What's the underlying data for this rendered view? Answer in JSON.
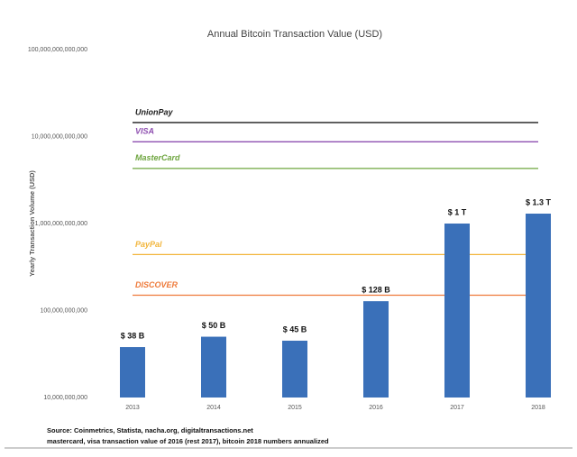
{
  "chart_data": {
    "type": "bar",
    "title": "Annual Bitcoin Transaction Value (USD)",
    "y_label": "Yearly Transaction Volume (USD)",
    "log_scale": true,
    "categories": [
      "2013",
      "2014",
      "2015",
      "2016",
      "2017",
      "2018"
    ],
    "values": [
      38000000000,
      50000000000,
      45000000000,
      128000000000,
      1000000000000,
      1300000000000
    ],
    "value_labels": [
      "$ 38 B",
      "$ 50 B",
      "$ 45 B",
      "$ 128 B",
      "$ 1 T",
      "$ 1.3 T"
    ],
    "color": "#3a70b9",
    "ylim": [
      10000000000,
      100000000000000
    ],
    "yticks": [
      {
        "value": 10000000000,
        "label": "10,000,000,000"
      },
      {
        "value": 100000000000,
        "label": "100,000,000,000"
      },
      {
        "value": 1000000000000,
        "label": "1,000,000,000,000"
      },
      {
        "value": 10000000000000,
        "label": "10,000,000,000,000"
      },
      {
        "value": 100000000000000,
        "label": "100,000,000,000,000"
      }
    ],
    "reference_lines": [
      {
        "name": "UnionPay",
        "color": "#1a1a1a",
        "value": 14500000000000
      },
      {
        "name": "VISA",
        "color": "#8e4fb0",
        "value": 8700000000000
      },
      {
        "name": "MasterCard",
        "color": "#6ea53f",
        "value": 4300000000000
      },
      {
        "name": "PayPal",
        "color": "#f2b63c",
        "value": 440000000000
      },
      {
        "name": "DISCOVER",
        "color": "#ee7a3a",
        "value": 150000000000
      }
    ],
    "notes": [
      "Source: Coinmetrics, Statista, nacha.org, digitaltransactions.net",
      "mastercard, visa transaction value of 2016 (rest 2017), bitcoin 2018 numbers annualized"
    ]
  }
}
